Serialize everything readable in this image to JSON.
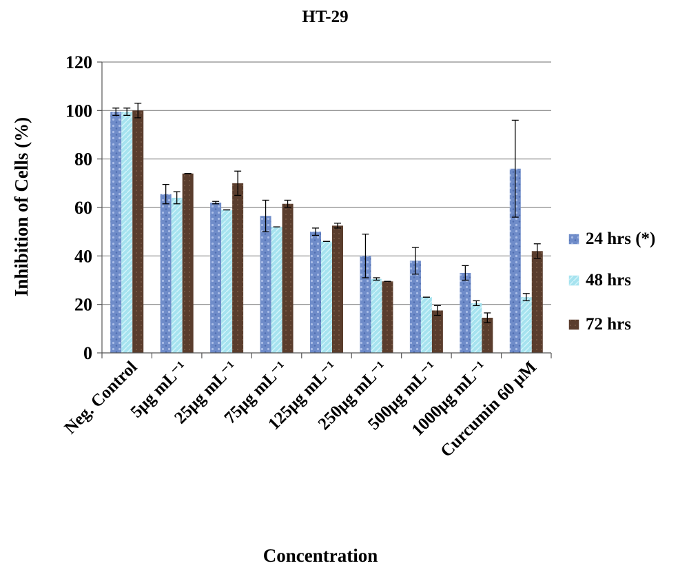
{
  "colors": {
    "series_24": "#6f8cc9",
    "series_48": "#a6e3ef",
    "series_72": "#5a3d2d",
    "grid": "#8a8a8a",
    "axis": "#555555",
    "error_bar": "#000000"
  },
  "chart_data": {
    "type": "bar",
    "title": "HT-29",
    "xlabel": "Concentration",
    "ylabel": "Inhibition of Cells (%)",
    "ylim": [
      0,
      120
    ],
    "yticks": [
      0,
      20,
      40,
      60,
      80,
      100,
      120
    ],
    "grid": true,
    "legend_position": "right",
    "categories": [
      "Neg. Control",
      "5μg mL⁻¹",
      "25μg mL⁻¹",
      "75μg mL⁻¹",
      "125μg mL⁻¹",
      "250μg mL⁻¹",
      "500μg mL⁻¹",
      "1000μg mL⁻¹",
      "Curcumin 60 μM"
    ],
    "series": [
      {
        "name": "24 hrs (*)",
        "values": [
          99.5,
          65.5,
          62,
          56.5,
          50,
          40,
          38,
          33,
          76
        ],
        "errors": [
          1.5,
          4,
          0.5,
          6.5,
          1.5,
          9,
          5.5,
          3,
          20
        ]
      },
      {
        "name": "48 hrs",
        "values": [
          99.5,
          64,
          59,
          52,
          46,
          30.5,
          23,
          20.5,
          23
        ],
        "errors": [
          1.5,
          2.5,
          0,
          0,
          0,
          0.5,
          0,
          1,
          1.5
        ]
      },
      {
        "name": "72 hrs",
        "values": [
          100,
          74,
          70,
          61.5,
          52.5,
          29.5,
          17.5,
          14.5,
          42
        ],
        "errors": [
          3,
          0,
          5,
          1.5,
          1,
          0,
          2,
          2,
          3
        ]
      }
    ]
  }
}
